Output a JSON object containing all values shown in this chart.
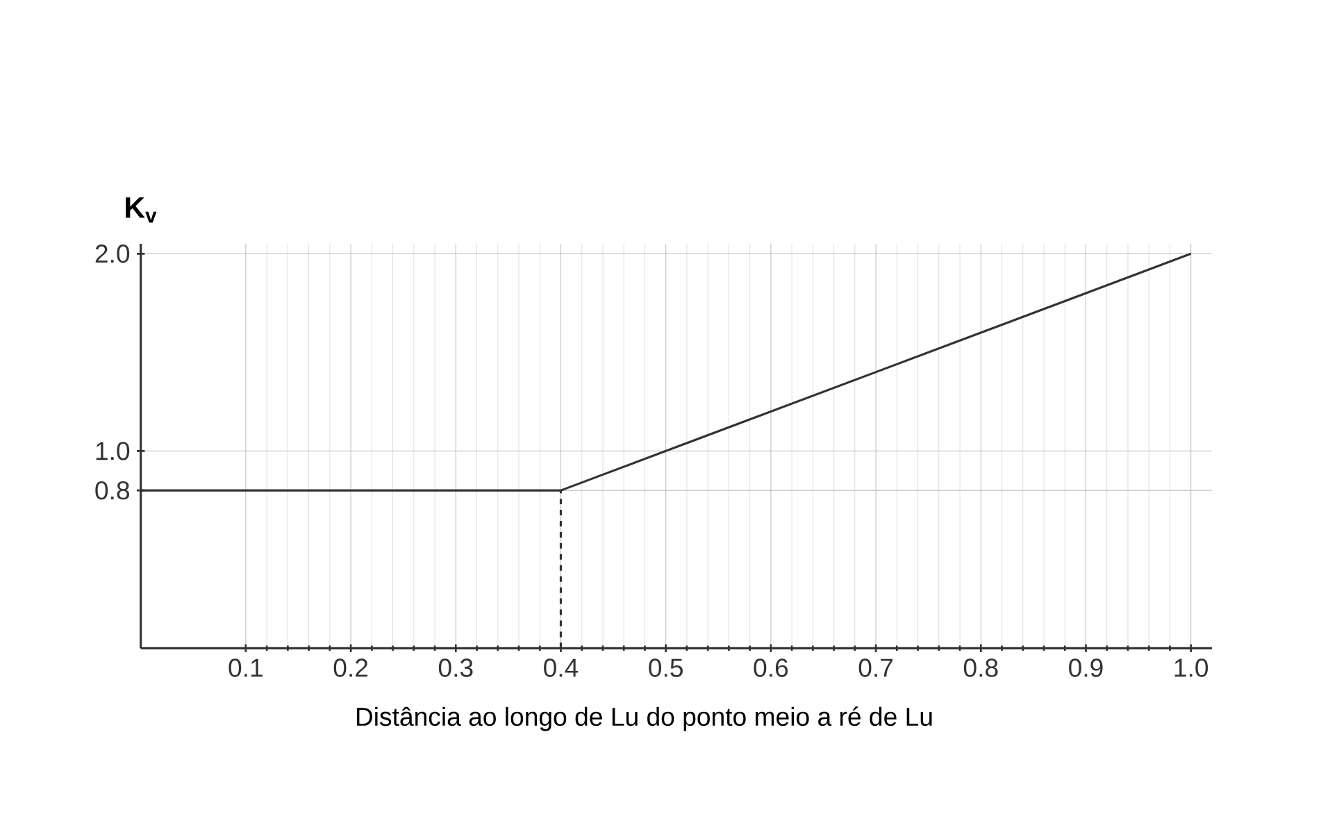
{
  "chart_data": {
    "type": "line",
    "xlabel": "Distância ao longo de Lu do ponto meio a ré de Lu",
    "ylabel": "K$_{v}$",
    "x": [
      0,
      0.4,
      1.0
    ],
    "series": [
      {
        "color": "#333333",
        "values": [
          0.8,
          0.8,
          2.0
        ],
        "line_style": "solid"
      },
      {
        "color": "#333333",
        "x": [
          0.4,
          0.4
        ],
        "values": [
          0,
          0.8
        ],
        "line_style": "dashed"
      }
    ],
    "xlim": [
      0,
      1.02
    ],
    "ylim": [
      0,
      2.05
    ],
    "xticks": [
      0.1,
      0.2,
      0.3,
      0.4,
      0.5,
      0.6,
      0.7,
      0.8,
      0.9,
      {
        "value": 1,
        "label": "1.0"
      }
    ],
    "yticks": [
      {
        "value": 0.8,
        "label": "0.8"
      },
      {
        "value": 1,
        "label": "1.0"
      },
      {
        "value": 2,
        "label": "2.0"
      }
    ],
    "grid": true,
    "marker": "none"
  }
}
